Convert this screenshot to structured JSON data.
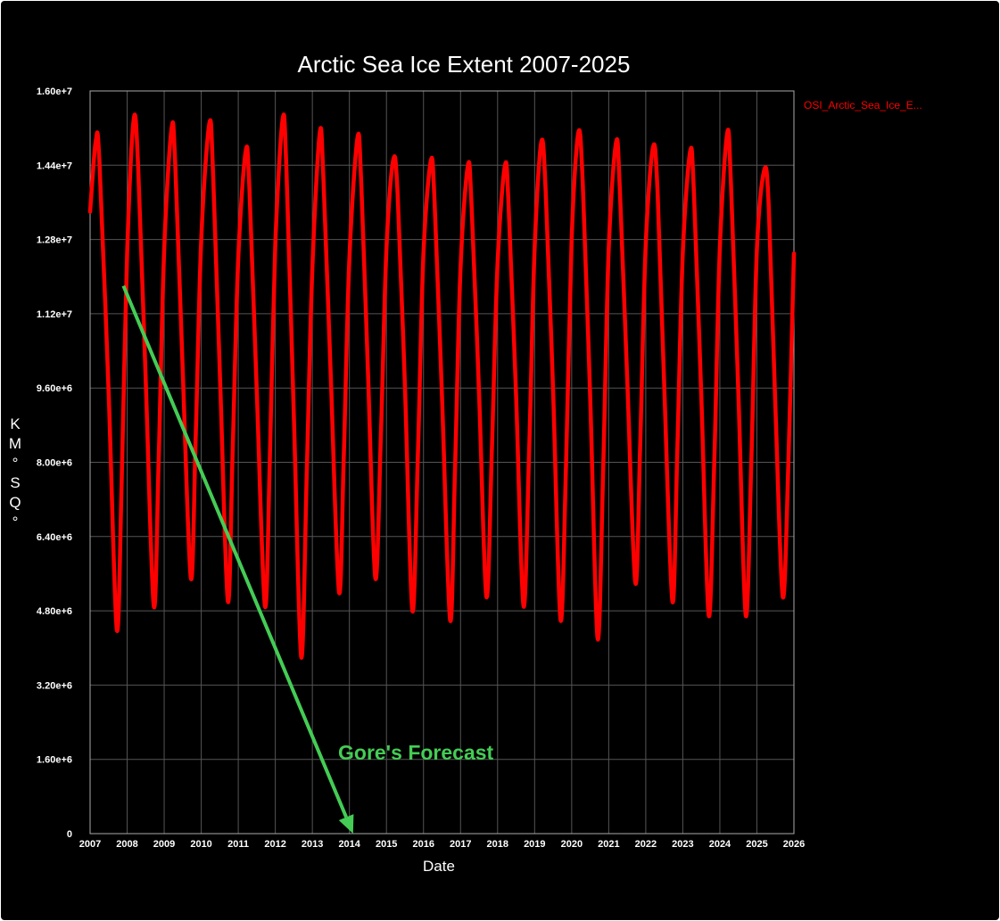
{
  "chart_data": {
    "type": "line",
    "title": "Arctic Sea Ice Extent 2007-2025",
    "xlabel": "Date",
    "ylabel": "KM°SQ°",
    "ylabel_chars": [
      "K",
      "M",
      "°",
      "S",
      "Q",
      "°"
    ],
    "xlim": [
      2007,
      2026
    ],
    "ylim": [
      0,
      16000000
    ],
    "x_ticks": [
      "2007",
      "2008",
      "2009",
      "2010",
      "2011",
      "2012",
      "2013",
      "2014",
      "2015",
      "2016",
      "2017",
      "2018",
      "2019",
      "2020",
      "2021",
      "2022",
      "2023",
      "2024",
      "2025",
      "2026"
    ],
    "y_ticks": [
      {
        "value": 0,
        "label": "0"
      },
      {
        "value": 1600000,
        "label": "1.60e+6"
      },
      {
        "value": 3200000,
        "label": "3.20e+6"
      },
      {
        "value": 4800000,
        "label": "4.80e+6"
      },
      {
        "value": 6400000,
        "label": "6.40e+6"
      },
      {
        "value": 8000000,
        "label": "8.00e+6"
      },
      {
        "value": 9600000,
        "label": "9.60e+6"
      },
      {
        "value": 11200000,
        "label": "1.12e+7"
      },
      {
        "value": 12800000,
        "label": "1.28e+7"
      },
      {
        "value": 14400000,
        "label": "1.44e+7"
      },
      {
        "value": 16000000,
        "label": "1.60e+7"
      }
    ],
    "grid": true,
    "legend_position": "top-right",
    "series": [
      {
        "name": "OSI_Arctic_Sea_Ice_E...",
        "color": "#ff0000",
        "points": [
          [
            2007.0,
            13400000.0
          ],
          [
            2007.15,
            14900000.0
          ],
          [
            2007.25,
            14500000.0
          ],
          [
            2007.5,
            9500000.0
          ],
          [
            2007.72,
            4400000.0
          ],
          [
            2007.85,
            7500000.0
          ],
          [
            2008.0,
            12500000.0
          ],
          [
            2008.18,
            15400000.0
          ],
          [
            2008.3,
            14300000.0
          ],
          [
            2008.5,
            9800000.0
          ],
          [
            2008.72,
            4900000.0
          ],
          [
            2008.85,
            8000000.0
          ],
          [
            2009.0,
            12600000.0
          ],
          [
            2009.2,
            15200000.0
          ],
          [
            2009.3,
            14400000.0
          ],
          [
            2009.5,
            10000000.0
          ],
          [
            2009.72,
            5500000.0
          ],
          [
            2009.85,
            8500000.0
          ],
          [
            2010.0,
            12800000.0
          ],
          [
            2010.22,
            15300000.0
          ],
          [
            2010.32,
            14200000.0
          ],
          [
            2010.52,
            9500000.0
          ],
          [
            2010.72,
            5000000.0
          ],
          [
            2010.85,
            8300000.0
          ],
          [
            2011.0,
            12400000.0
          ],
          [
            2011.2,
            14700000.0
          ],
          [
            2011.3,
            13900000.0
          ],
          [
            2011.5,
            9500000.0
          ],
          [
            2011.72,
            4900000.0
          ],
          [
            2011.85,
            8000000.0
          ],
          [
            2012.0,
            12700000.0
          ],
          [
            2012.2,
            15400000.0
          ],
          [
            2012.3,
            14300000.0
          ],
          [
            2012.5,
            9000000.0
          ],
          [
            2012.7,
            3800000.0
          ],
          [
            2012.85,
            7800000.0
          ],
          [
            2013.0,
            12200000.0
          ],
          [
            2013.2,
            15100000.0
          ],
          [
            2013.3,
            14100000.0
          ],
          [
            2013.5,
            9800000.0
          ],
          [
            2013.72,
            5200000.0
          ],
          [
            2013.85,
            8200000.0
          ],
          [
            2014.0,
            12400000.0
          ],
          [
            2014.22,
            15000000.0
          ],
          [
            2014.32,
            14000000.0
          ],
          [
            2014.5,
            10000000.0
          ],
          [
            2014.7,
            5500000.0
          ],
          [
            2014.85,
            8600000.0
          ],
          [
            2015.0,
            12600000.0
          ],
          [
            2015.18,
            14500000.0
          ],
          [
            2015.3,
            13800000.0
          ],
          [
            2015.5,
            9600000.0
          ],
          [
            2015.7,
            4800000.0
          ],
          [
            2015.85,
            8200000.0
          ],
          [
            2016.0,
            12500000.0
          ],
          [
            2016.2,
            14500000.0
          ],
          [
            2016.3,
            13600000.0
          ],
          [
            2016.5,
            9400000.0
          ],
          [
            2016.72,
            4600000.0
          ],
          [
            2016.85,
            7800000.0
          ],
          [
            2017.0,
            12200000.0
          ],
          [
            2017.2,
            14400000.0
          ],
          [
            2017.3,
            13500000.0
          ],
          [
            2017.5,
            9500000.0
          ],
          [
            2017.7,
            5100000.0
          ],
          [
            2017.85,
            8400000.0
          ],
          [
            2018.0,
            12300000.0
          ],
          [
            2018.2,
            14400000.0
          ],
          [
            2018.3,
            13500000.0
          ],
          [
            2018.5,
            9400000.0
          ],
          [
            2018.7,
            4900000.0
          ],
          [
            2018.85,
            8200000.0
          ],
          [
            2019.0,
            12600000.0
          ],
          [
            2019.18,
            14900000.0
          ],
          [
            2019.3,
            13800000.0
          ],
          [
            2019.5,
            9500000.0
          ],
          [
            2019.7,
            4600000.0
          ],
          [
            2019.85,
            8000000.0
          ],
          [
            2020.0,
            12800000.0
          ],
          [
            2020.18,
            15100000.0
          ],
          [
            2020.3,
            14000000.0
          ],
          [
            2020.5,
            9400000.0
          ],
          [
            2020.7,
            4200000.0
          ],
          [
            2020.85,
            7800000.0
          ],
          [
            2021.0,
            12600000.0
          ],
          [
            2021.2,
            14900000.0
          ],
          [
            2021.3,
            13900000.0
          ],
          [
            2021.5,
            9800000.0
          ],
          [
            2021.72,
            5400000.0
          ],
          [
            2021.85,
            8400000.0
          ],
          [
            2022.0,
            12700000.0
          ],
          [
            2022.2,
            14800000.0
          ],
          [
            2022.32,
            13800000.0
          ],
          [
            2022.5,
            9600000.0
          ],
          [
            2022.72,
            5000000.0
          ],
          [
            2022.85,
            8200000.0
          ],
          [
            2023.0,
            12500000.0
          ],
          [
            2023.2,
            14700000.0
          ],
          [
            2023.3,
            13800000.0
          ],
          [
            2023.5,
            9400000.0
          ],
          [
            2023.7,
            4700000.0
          ],
          [
            2023.85,
            8000000.0
          ],
          [
            2024.0,
            12600000.0
          ],
          [
            2024.2,
            15100000.0
          ],
          [
            2024.3,
            14000000.0
          ],
          [
            2024.5,
            9500000.0
          ],
          [
            2024.7,
            4700000.0
          ],
          [
            2024.85,
            8000000.0
          ],
          [
            2025.0,
            12600000.0
          ],
          [
            2025.2,
            14300000.0
          ],
          [
            2025.32,
            13500000.0
          ],
          [
            2025.5,
            9200000.0
          ],
          [
            2025.7,
            5100000.0
          ],
          [
            2025.85,
            8000000.0
          ],
          [
            2026.0,
            12500000.0
          ]
        ]
      }
    ],
    "annotation": {
      "text": "Gore's Forecast",
      "color": "#44cc55",
      "arrow_from": [
        2007.9,
        11800000
      ],
      "arrow_to": [
        2014.1,
        0
      ]
    }
  }
}
